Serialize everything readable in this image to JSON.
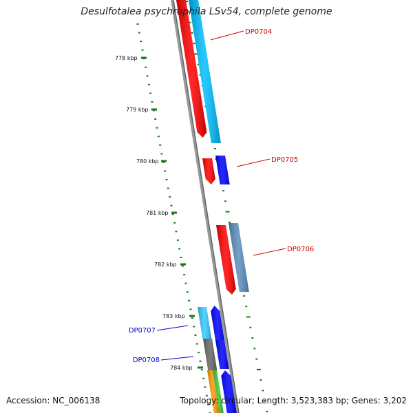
{
  "title": "Desulfotalea psychrophila LSv54, complete genome",
  "accession_text": "Accession: NC_006138",
  "summary_text": "Topology: circular; Length: 3,523,383 bp; Genes: 3,202",
  "colors": {
    "backbone": "#888888",
    "ticks": "#1a7a1a",
    "label_red": "#cc0000",
    "label_blue": "#0000cc"
  },
  "scale": {
    "ticks": [
      {
        "label": "778 kbp"
      },
      {
        "label": "779 kbp"
      },
      {
        "label": "780 kbp"
      },
      {
        "label": "781 kbp"
      },
      {
        "label": "782 kbp"
      },
      {
        "label": "783 kbp"
      },
      {
        "label": "784 kbp"
      }
    ]
  },
  "gene_labels": [
    {
      "text": "DP0704",
      "color": "#cc0000"
    },
    {
      "text": "DP0705",
      "color": "#cc0000"
    },
    {
      "text": "DP0706",
      "color": "#cc0000"
    },
    {
      "text": "DP0707",
      "color": "#0000cc"
    },
    {
      "text": "DP0708",
      "color": "#0000cc"
    }
  ],
  "genes": [
    {
      "strand": "reverse",
      "color": "#ff0000",
      "name": ""
    },
    {
      "strand": "forward",
      "color": "#00bfff",
      "name": ""
    },
    {
      "strand": "reverse",
      "color": "#ff0000",
      "name": ""
    },
    {
      "strand": "forward",
      "color": "#0000ff",
      "name": ""
    },
    {
      "strand": "reverse",
      "color": "#ff0000",
      "name": ""
    },
    {
      "strand": "forward",
      "color": "#5a8fbf",
      "name": ""
    },
    {
      "strand": "inner",
      "color": "#33ccff",
      "name": ""
    },
    {
      "strand": "inner",
      "color": "#0000ff",
      "name": ""
    },
    {
      "strand": "inner",
      "color": "#666666",
      "name": ""
    },
    {
      "strand": "inner",
      "color": "#0000ff",
      "name": ""
    },
    {
      "strand": "inner",
      "color": "#ff9900",
      "name": ""
    },
    {
      "strand": "inner",
      "color": "#33cc33",
      "name": ""
    },
    {
      "strand": "inner",
      "color": "#0000ff",
      "name": ""
    }
  ]
}
